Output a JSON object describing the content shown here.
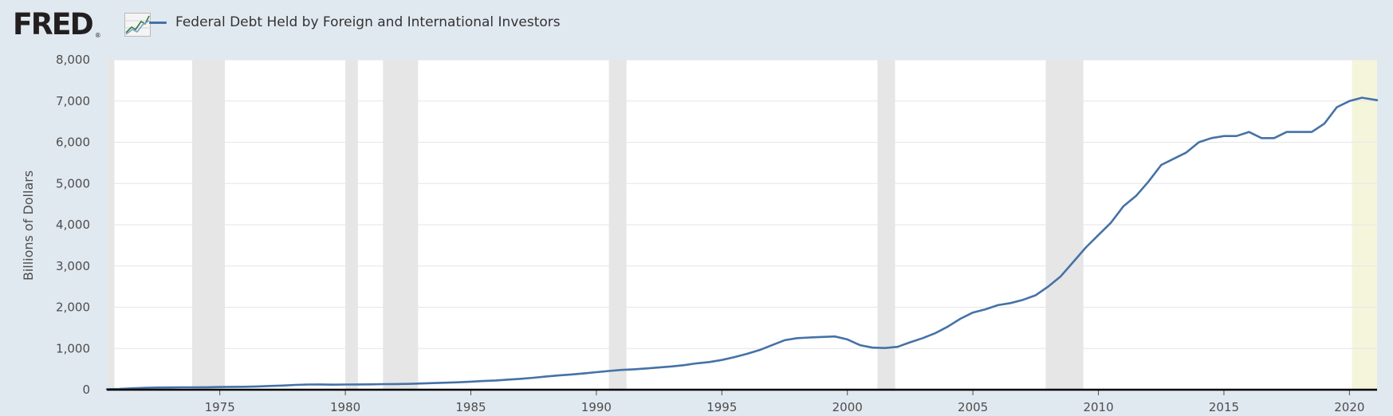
{
  "header": {
    "logo_text": "FRED",
    "logo_reg": "®",
    "legend_label": "Federal Debt Held by Foreign and International Investors"
  },
  "colors": {
    "background": "#e1e9f0",
    "plot_background": "#ffffff",
    "series_line": "#4572a7",
    "recession_band": "#e6e6e6",
    "forecast_band": "#f5f5dc",
    "gridline": "#e6e6e6",
    "baseline": "#000000"
  },
  "chart_data": {
    "type": "line",
    "title": "",
    "xlabel": "",
    "ylabel": "Billions of Dollars",
    "xlim": [
      1970.5,
      2021.1
    ],
    "ylim": [
      0,
      8000
    ],
    "grid": true,
    "legend_position": "top-left",
    "x_ticks": [
      1975,
      1980,
      1985,
      1990,
      1995,
      2000,
      2005,
      2010,
      2015,
      2020
    ],
    "y_ticks": [
      0,
      1000,
      2000,
      3000,
      4000,
      5000,
      6000,
      7000,
      8000
    ],
    "y_tick_labels": [
      "0",
      "1,000",
      "2,000",
      "3,000",
      "4,000",
      "5,000",
      "6,000",
      "7,000",
      "8,000"
    ],
    "recessions": [
      [
        1970.0,
        1970.8
      ],
      [
        1973.9,
        1975.2
      ],
      [
        1980.0,
        1980.5
      ],
      [
        1981.5,
        1982.9
      ],
      [
        1990.5,
        1991.2
      ],
      [
        2001.2,
        2001.9
      ],
      [
        2007.9,
        2009.4
      ],
      [
        2020.1,
        2021.1
      ]
    ],
    "series": [
      {
        "name": "Federal Debt Held by Foreign and International Investors",
        "points": [
          [
            1970.5,
            12
          ],
          [
            1971,
            18
          ],
          [
            1971.5,
            32
          ],
          [
            1972,
            45
          ],
          [
            1972.5,
            52
          ],
          [
            1973,
            55
          ],
          [
            1973.5,
            58
          ],
          [
            1974,
            58
          ],
          [
            1974.5,
            60
          ],
          [
            1975,
            65
          ],
          [
            1975.5,
            70
          ],
          [
            1976,
            72
          ],
          [
            1976.5,
            80
          ],
          [
            1977,
            90
          ],
          [
            1977.5,
            100
          ],
          [
            1978,
            115
          ],
          [
            1978.5,
            125
          ],
          [
            1979,
            128
          ],
          [
            1979.5,
            122
          ],
          [
            1980,
            125
          ],
          [
            1980.5,
            128
          ],
          [
            1981,
            130
          ],
          [
            1981.5,
            135
          ],
          [
            1982,
            138
          ],
          [
            1982.5,
            142
          ],
          [
            1983,
            150
          ],
          [
            1983.5,
            160
          ],
          [
            1984,
            170
          ],
          [
            1984.5,
            180
          ],
          [
            1985,
            195
          ],
          [
            1985.5,
            210
          ],
          [
            1986,
            225
          ],
          [
            1986.5,
            245
          ],
          [
            1987,
            265
          ],
          [
            1987.5,
            290
          ],
          [
            1988,
            320
          ],
          [
            1988.5,
            345
          ],
          [
            1989,
            370
          ],
          [
            1989.5,
            395
          ],
          [
            1990,
            425
          ],
          [
            1990.5,
            455
          ],
          [
            1991,
            480
          ],
          [
            1991.5,
            495
          ],
          [
            1992,
            515
          ],
          [
            1992.5,
            540
          ],
          [
            1993,
            565
          ],
          [
            1993.5,
            595
          ],
          [
            1994,
            640
          ],
          [
            1994.5,
            670
          ],
          [
            1995,
            720
          ],
          [
            1995.5,
            790
          ],
          [
            1996,
            870
          ],
          [
            1996.5,
            960
          ],
          [
            1997,
            1080
          ],
          [
            1997.5,
            1200
          ],
          [
            1998,
            1250
          ],
          [
            1998.5,
            1265
          ],
          [
            1999,
            1280
          ],
          [
            1999.5,
            1290
          ],
          [
            2000,
            1220
          ],
          [
            2000.5,
            1080
          ],
          [
            2001,
            1020
          ],
          [
            2001.5,
            1010
          ],
          [
            2002,
            1040
          ],
          [
            2002.5,
            1150
          ],
          [
            2003,
            1250
          ],
          [
            2003.5,
            1370
          ],
          [
            2004,
            1530
          ],
          [
            2004.5,
            1720
          ],
          [
            2005,
            1870
          ],
          [
            2005.5,
            1950
          ],
          [
            2006,
            2050
          ],
          [
            2006.5,
            2100
          ],
          [
            2007,
            2180
          ],
          [
            2007.5,
            2290
          ],
          [
            2008,
            2500
          ],
          [
            2008.5,
            2750
          ],
          [
            2009,
            3100
          ],
          [
            2009.5,
            3450
          ],
          [
            2010,
            3750
          ],
          [
            2010.5,
            4050
          ],
          [
            2011,
            4450
          ],
          [
            2011.5,
            4700
          ],
          [
            2012,
            5050
          ],
          [
            2012.5,
            5450
          ],
          [
            2013,
            5600
          ],
          [
            2013.5,
            5750
          ],
          [
            2014,
            6000
          ],
          [
            2014.5,
            6100
          ],
          [
            2015,
            6150
          ],
          [
            2015.5,
            6150
          ],
          [
            2016,
            6250
          ],
          [
            2016.5,
            6100
          ],
          [
            2017,
            6100
          ],
          [
            2017.5,
            6250
          ],
          [
            2018,
            6250
          ],
          [
            2018.5,
            6250
          ],
          [
            2019,
            6450
          ],
          [
            2019.5,
            6850
          ],
          [
            2020,
            7000
          ],
          [
            2020.5,
            7080
          ],
          [
            2021.1,
            7020
          ]
        ]
      }
    ]
  }
}
